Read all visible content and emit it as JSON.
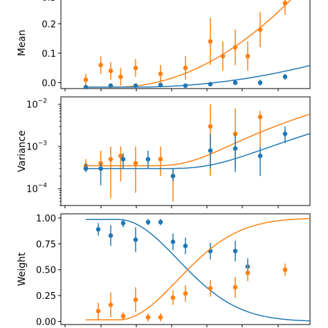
{
  "colors": {
    "blue": "#1f77b4",
    "orange": "#ff7f0e"
  },
  "chart_data": [
    {
      "type": "scatter",
      "ylabel": "Mean",
      "yscale": "linear",
      "ylim": [
        -0.02,
        0.29
      ],
      "yticks": [
        0.0,
        0.1,
        0.2
      ],
      "ytick_labels": [
        "0.0",
        "0.1",
        "0.2"
      ],
      "top_clipped_label": "0.3",
      "series": [
        {
          "color": "orange",
          "points": [
            {
              "x": 0.3,
              "y": 0.01,
              "err": 0.02
            },
            {
              "x": 0.36,
              "y": 0.06,
              "err": 0.03
            },
            {
              "x": 0.4,
              "y": 0.04,
              "err": 0.03
            },
            {
              "x": 0.44,
              "y": 0.02,
              "err": 0.03
            },
            {
              "x": 0.5,
              "y": 0.05,
              "err": 0.03
            },
            {
              "x": 0.6,
              "y": 0.03,
              "err": 0.03
            },
            {
              "x": 0.7,
              "y": 0.05,
              "err": 0.04
            },
            {
              "x": 0.8,
              "y": 0.14,
              "err": 0.08
            },
            {
              "x": 0.85,
              "y": 0.09,
              "err": 0.05
            },
            {
              "x": 0.9,
              "y": 0.12,
              "err": 0.06
            },
            {
              "x": 0.95,
              "y": 0.09,
              "err": 0.05
            },
            {
              "x": 1.0,
              "y": 0.18,
              "err": 0.06
            },
            {
              "x": 1.1,
              "y": 0.27,
              "err": 0.04
            }
          ],
          "curve": {
            "a": -0.015,
            "b": 0.6,
            "x0": 0.42,
            "p": 2.0
          }
        },
        {
          "color": "blue",
          "points": [
            {
              "x": 0.3,
              "y": -0.015,
              "err": 0.005
            },
            {
              "x": 0.4,
              "y": -0.01,
              "err": 0.005
            },
            {
              "x": 0.5,
              "y": -0.01,
              "err": 0.005
            },
            {
              "x": 0.6,
              "y": -0.008,
              "err": 0.005
            },
            {
              "x": 0.7,
              "y": -0.01,
              "err": 0.006
            },
            {
              "x": 0.8,
              "y": -0.005,
              "err": 0.006
            },
            {
              "x": 0.9,
              "y": 0.0,
              "err": 0.008
            },
            {
              "x": 1.0,
              "y": 0.0,
              "err": 0.01
            },
            {
              "x": 1.1,
              "y": 0.02,
              "err": 0.01
            }
          ],
          "curve": {
            "a": -0.015,
            "b": 0.15,
            "x0": 0.5,
            "p": 2.0
          }
        }
      ]
    },
    {
      "type": "scatter",
      "ylabel": "Variance",
      "yscale": "log",
      "ylim": [
        4e-05,
        0.015
      ],
      "yticks": [
        0.0001,
        0.001,
        0.01
      ],
      "ytick_labels": [
        "10",
        "10",
        "10"
      ],
      "ytick_exponents": [
        "−4",
        "−3",
        "−2"
      ],
      "series": [
        {
          "color": "orange",
          "points": [
            {
              "x": 0.3,
              "y": 0.00035,
              "lo": 0.00025,
              "hi": 0.0005
            },
            {
              "x": 0.36,
              "y": 0.0004,
              "lo": 0.0002,
              "hi": 0.0008
            },
            {
              "x": 0.4,
              "y": 0.0005,
              "lo": 6e-05,
              "hi": 0.001
            },
            {
              "x": 0.44,
              "y": 0.0006,
              "lo": 0.00015,
              "hi": 0.001
            },
            {
              "x": 0.5,
              "y": 0.0004,
              "lo": 8e-05,
              "hi": 0.001
            },
            {
              "x": 0.6,
              "y": 0.0005,
              "lo": 0.0002,
              "hi": 0.001
            },
            {
              "x": 0.65,
              "y": 0.0002,
              "lo": 5e-05,
              "hi": 0.0003
            },
            {
              "x": 0.8,
              "y": 0.003,
              "lo": 0.0002,
              "hi": 0.01
            },
            {
              "x": 0.9,
              "y": 0.002,
              "lo": 0.0003,
              "hi": 0.008
            },
            {
              "x": 1.0,
              "y": 0.005,
              "lo": 0.001,
              "hi": 0.007
            }
          ],
          "curve": {
            "base": 0.00035,
            "x0": 0.55,
            "amp": 0.02,
            "p": 3.0
          }
        },
        {
          "color": "blue",
          "points": [
            {
              "x": 0.3,
              "y": 0.0003,
              "lo": 0.00025,
              "hi": 0.0004
            },
            {
              "x": 0.36,
              "y": 0.0003,
              "lo": 0.00012,
              "hi": 0.0004
            },
            {
              "x": 0.45,
              "y": 0.0005,
              "lo": 0.0003,
              "hi": 0.0007
            },
            {
              "x": 0.55,
              "y": 0.0005,
              "lo": 0.0003,
              "hi": 0.0008
            },
            {
              "x": 0.65,
              "y": 0.0002,
              "lo": 0.00015,
              "hi": 0.0003
            },
            {
              "x": 0.8,
              "y": 0.0008,
              "lo": 0.0003,
              "hi": 0.002
            },
            {
              "x": 0.9,
              "y": 0.0009,
              "lo": 0.00025,
              "hi": 0.002
            },
            {
              "x": 1.0,
              "y": 0.0006,
              "lo": 0.0002,
              "hi": 0.001
            },
            {
              "x": 1.1,
              "y": 0.002,
              "lo": 0.0012,
              "hi": 0.003
            }
          ],
          "curve": {
            "base": 0.0003,
            "x0": 0.6,
            "amp": 0.008,
            "p": 3.0
          }
        }
      ]
    },
    {
      "type": "scatter",
      "ylabel": "Weight",
      "yscale": "linear",
      "ylim": [
        -0.03,
        1.04
      ],
      "yticks": [
        0.0,
        0.25,
        0.5,
        0.75,
        1.0
      ],
      "ytick_labels": [
        "0.00",
        "0.25",
        "0.50",
        "0.75",
        "1.00"
      ],
      "series": [
        {
          "color": "blue",
          "points": [
            {
              "x": 0.35,
              "y": 0.89,
              "err": 0.06
            },
            {
              "x": 0.4,
              "y": 0.83,
              "err": 0.1
            },
            {
              "x": 0.45,
              "y": 0.95,
              "err": 0.04
            },
            {
              "x": 0.5,
              "y": 0.79,
              "err": 0.12
            },
            {
              "x": 0.55,
              "y": 0.96,
              "err": 0.03
            },
            {
              "x": 0.6,
              "y": 0.96,
              "err": 0.03
            },
            {
              "x": 0.65,
              "y": 0.77,
              "err": 0.08
            },
            {
              "x": 0.7,
              "y": 0.73,
              "err": 0.08
            },
            {
              "x": 0.8,
              "y": 0.68,
              "err": 0.08
            },
            {
              "x": 0.9,
              "y": 0.68,
              "err": 0.1
            },
            {
              "x": 0.95,
              "y": 0.53,
              "err": 0.08
            }
          ],
          "curve": {
            "from": 0.985,
            "to": 0.0,
            "k": 1.45,
            "x0": 0.43,
            "p": 2.0
          }
        },
        {
          "color": "orange",
          "points": [
            {
              "x": 0.35,
              "y": 0.1,
              "err": 0.08
            },
            {
              "x": 0.4,
              "y": 0.16,
              "err": 0.12
            },
            {
              "x": 0.45,
              "y": 0.05,
              "err": 0.04
            },
            {
              "x": 0.5,
              "y": 0.21,
              "err": 0.12
            },
            {
              "x": 0.55,
              "y": 0.04,
              "err": 0.04
            },
            {
              "x": 0.6,
              "y": 0.04,
              "err": 0.04
            },
            {
              "x": 0.65,
              "y": 0.23,
              "err": 0.07
            },
            {
              "x": 0.7,
              "y": 0.27,
              "err": 0.08
            },
            {
              "x": 0.8,
              "y": 0.32,
              "err": 0.08
            },
            {
              "x": 0.9,
              "y": 0.33,
              "err": 0.1
            },
            {
              "x": 0.95,
              "y": 0.47,
              "err": 0.08
            },
            {
              "x": 1.1,
              "y": 0.5,
              "err": 0.06
            }
          ],
          "curve": {
            "from": 0.015,
            "to": 1.0,
            "k": 1.45,
            "x0": 0.43,
            "p": 2.0
          }
        }
      ]
    }
  ]
}
